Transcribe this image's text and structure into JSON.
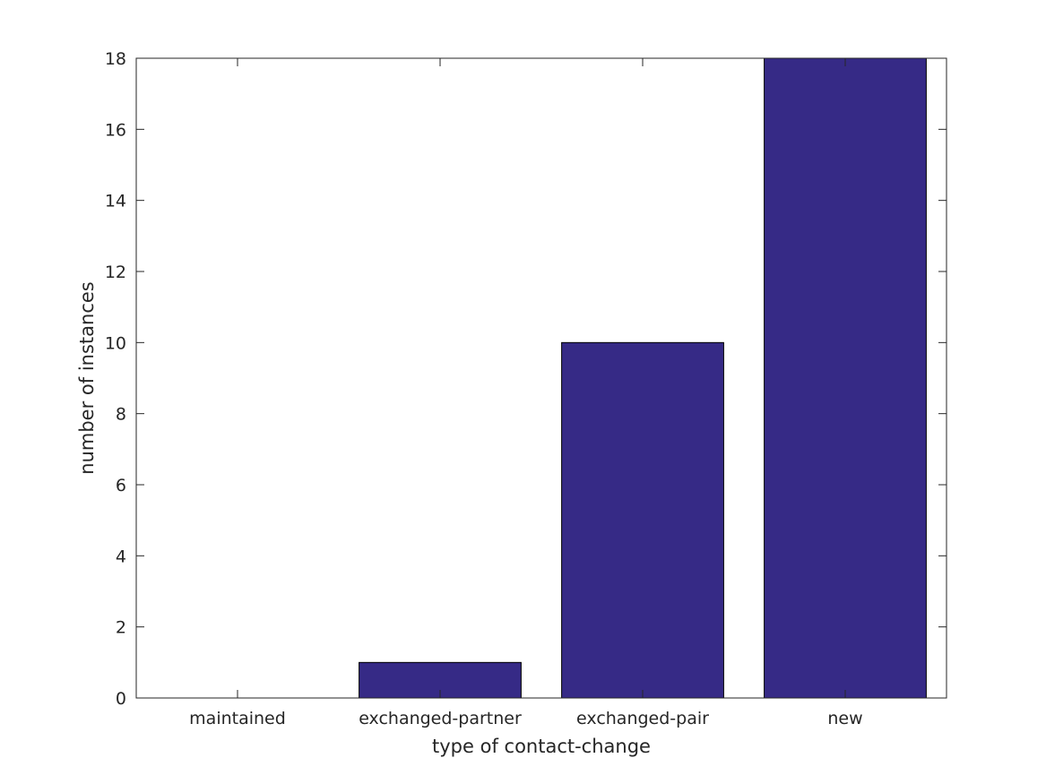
{
  "chart_data": {
    "type": "bar",
    "categories": [
      "maintained",
      "exchanged-partner",
      "exchanged-pair",
      "new"
    ],
    "values": [
      0,
      1,
      10,
      18
    ],
    "xlabel": "type of contact-change",
    "ylabel": "number of instances",
    "ylim": [
      0,
      18
    ],
    "yticks": [
      0,
      2,
      4,
      6,
      8,
      10,
      12,
      14,
      16,
      18
    ],
    "grid": false,
    "legend": "none",
    "bar_color": "#362a86",
    "bar_edge_color": "#000000",
    "axis_color": "#262626"
  }
}
